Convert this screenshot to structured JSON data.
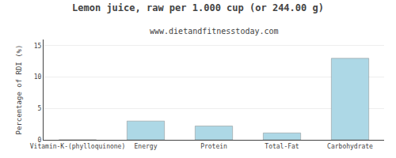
{
  "chart_data": {
    "type": "bar",
    "title": "Lemon juice, raw per 1.000 cup (or 244.00 g)",
    "subtitle": "www.dietandfitnesstoday.com",
    "categories": [
      "Vitamin-K-(phylloquinone)",
      "Energy",
      "Protein",
      "Total-Fat",
      "Carbohydrate"
    ],
    "values": [
      0,
      3.0,
      2.2,
      1.1,
      13.0
    ],
    "color": "#add8e6",
    "ylabel": "Percentage of RDI (%)",
    "ylim": [
      0,
      16
    ],
    "yticks": [
      0,
      5,
      10,
      15
    ],
    "grid": true
  }
}
